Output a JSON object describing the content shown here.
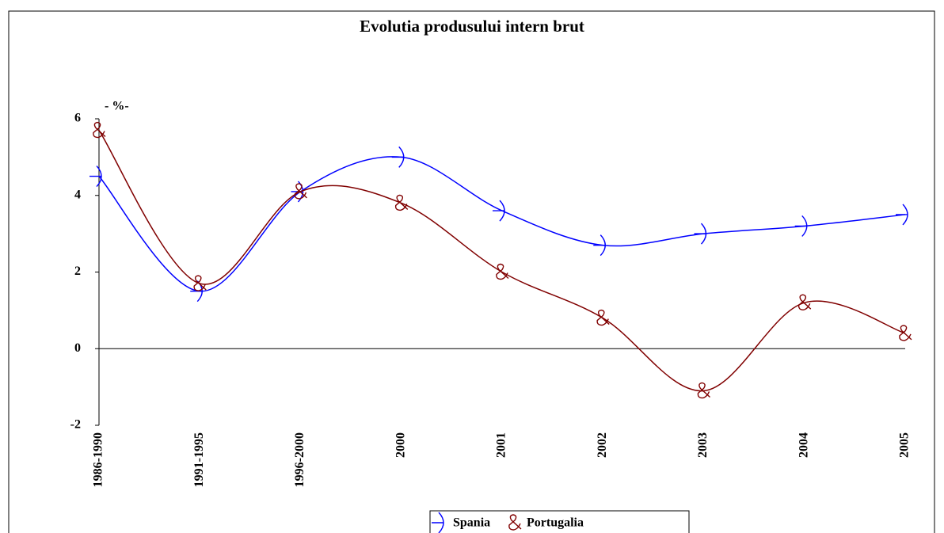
{
  "chart_data": {
    "type": "line",
    "title": "Evolutia produsului intern brut",
    "y_label": "- %-",
    "categories": [
      "1986-1990",
      "1991-1995",
      "1996-2000",
      "2000",
      "2001",
      "2002",
      "2003",
      "2004",
      "2005"
    ],
    "series": [
      {
        "name": "Spania",
        "color": "#0000ff",
        "values": [
          4.5,
          1.5,
          4.1,
          5.0,
          3.6,
          2.7,
          3.0,
          3.2,
          3.5
        ]
      },
      {
        "name": "Portugalia",
        "color": "#800000",
        "values": [
          5.7,
          1.7,
          4.1,
          3.8,
          2.0,
          0.8,
          -1.1,
          1.2,
          0.4
        ]
      }
    ],
    "ylim": [
      -2,
      6
    ],
    "yticks": [
      -2,
      0,
      2,
      4,
      6
    ]
  }
}
